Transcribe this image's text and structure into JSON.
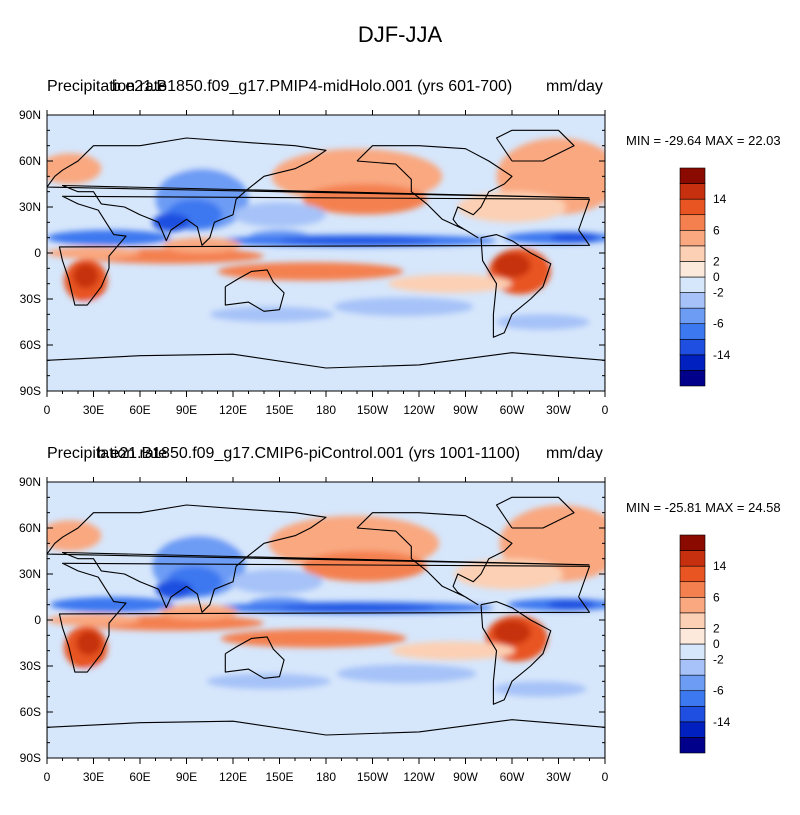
{
  "title": "DJF-JJA",
  "colors": [
    "#00008b",
    "#0020c0",
    "#1f4fe0",
    "#3c78f0",
    "#6d9cf5",
    "#a6c2f8",
    "#d6e6fb",
    "#fde9dc",
    "#fcd0b4",
    "#f9a880",
    "#f4804f",
    "#e85522",
    "#c6300f",
    "#8b0a00"
  ],
  "colorbar_labels": [
    "-14",
    "-6",
    "-2",
    "0",
    "2",
    "6",
    "14"
  ],
  "panels": [
    {
      "variable": "Precipitation rate",
      "case": "b.e21.B1850.f09_g17.PMIP4-midHolo.001 (yrs 601-700)",
      "units": "mm/day",
      "minmax": "MIN = -29.64 MAX =  22.03"
    },
    {
      "variable": "Precipitation rate",
      "case": "b.e21.B1850.f09_g17.CMIP6-piControl.001 (yrs 1001-1100)",
      "units": "mm/day",
      "minmax": "MIN = -25.81 MAX =  24.58"
    }
  ],
  "axes": {
    "lat_labels": [
      "90N",
      "60N",
      "30N",
      "0",
      "30S",
      "60S",
      "90S"
    ],
    "lon_labels": [
      "0",
      "30E",
      "60E",
      "90E",
      "120E",
      "150E",
      "180",
      "150W",
      "120W",
      "90W",
      "60W",
      "30W",
      "0"
    ]
  }
}
